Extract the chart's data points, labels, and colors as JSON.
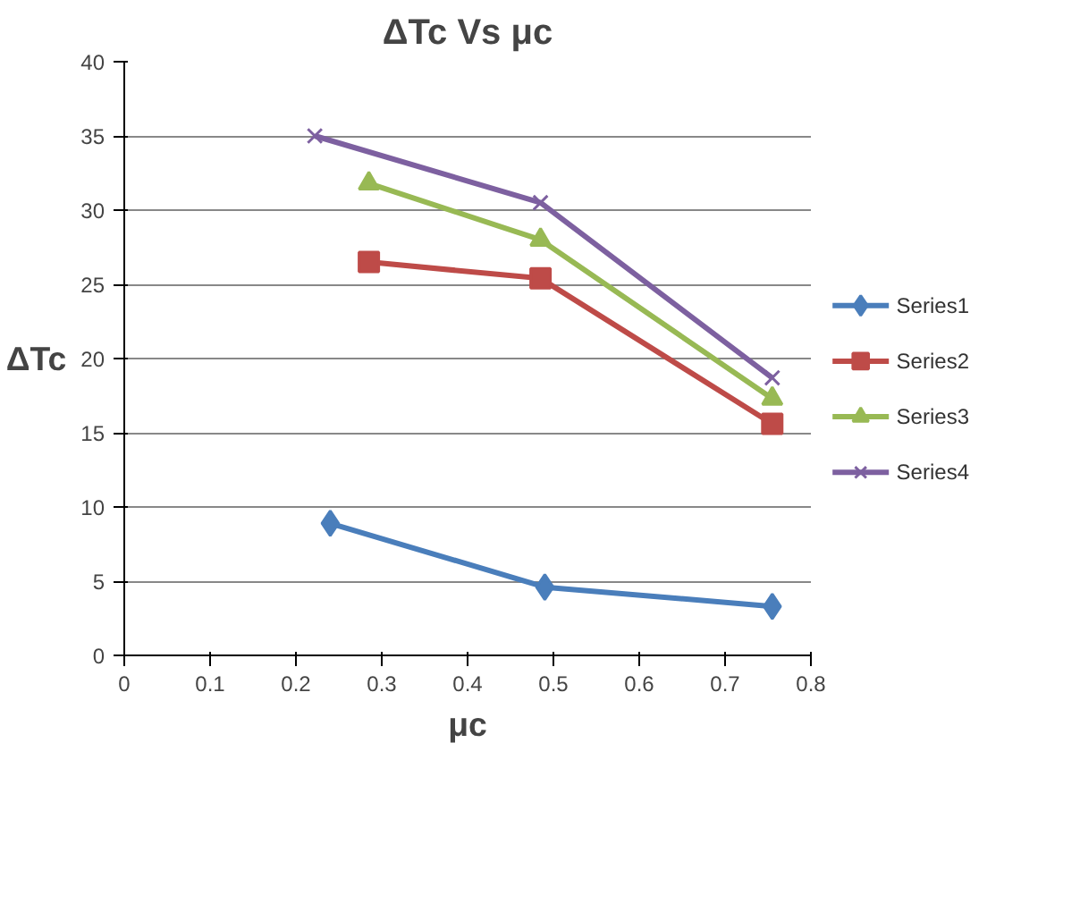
{
  "chart_data": {
    "type": "line",
    "title": "ΔTc Vs μc",
    "xlabel": "μc",
    "ylabel": "ΔTc",
    "xlim": [
      0,
      0.8
    ],
    "xticks": [
      0,
      0.1,
      0.2,
      0.3,
      0.4,
      0.5,
      0.6,
      0.7,
      0.8
    ],
    "ylim": [
      0,
      40
    ],
    "yticks": [
      0,
      5,
      10,
      15,
      20,
      25,
      30,
      35,
      40
    ],
    "grid": "y",
    "legend": "right",
    "series": [
      {
        "name": "Series1",
        "color": "#4a7ebb",
        "marker": "diamond",
        "x": [
          0.24,
          0.49,
          0.755
        ],
        "values": [
          8.9,
          4.6,
          3.3
        ]
      },
      {
        "name": "Series2",
        "color": "#be4b48",
        "marker": "square",
        "x": [
          0.285,
          0.485,
          0.755
        ],
        "values": [
          26.5,
          25.4,
          15.6
        ]
      },
      {
        "name": "Series3",
        "color": "#98b954",
        "marker": "triangle",
        "x": [
          0.285,
          0.485,
          0.755
        ],
        "values": [
          31.8,
          28.0,
          17.3
        ]
      },
      {
        "name": "Series4",
        "color": "#7d60a0",
        "marker": "cross",
        "x": [
          0.222,
          0.485,
          0.755
        ],
        "values": [
          35.0,
          30.5,
          18.7
        ]
      }
    ]
  }
}
